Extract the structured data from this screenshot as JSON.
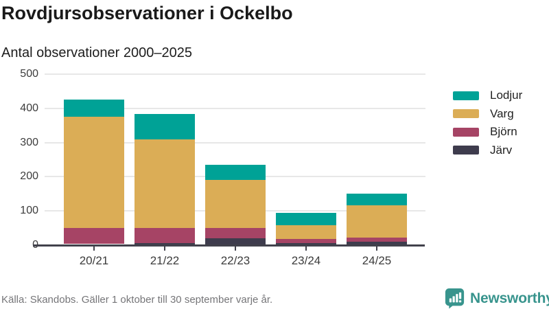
{
  "header": {
    "title": "Rovdjursobservationer i Ockelbo",
    "subtitle": "Antal observationer 2000–2025"
  },
  "chart_data": {
    "type": "bar",
    "stacked": true,
    "title": "Rovdjursobservationer i Ockelbo",
    "subtitle": "Antal observationer 2000–2025",
    "categories": [
      "20/21",
      "21/22",
      "22/23",
      "23/24",
      "24/25"
    ],
    "series": [
      {
        "name": "Järv",
        "color": "#3e3c4d",
        "values": [
          3,
          7,
          20,
          7,
          10
        ]
      },
      {
        "name": "Björn",
        "color": "#a64465",
        "values": [
          48,
          44,
          30,
          12,
          12
        ]
      },
      {
        "name": "Varg",
        "color": "#dbad56",
        "values": [
          324,
          259,
          140,
          39,
          94
        ]
      },
      {
        "name": "Lodjur",
        "color": "#00a296",
        "values": [
          50,
          73,
          45,
          37,
          34
        ]
      }
    ],
    "totals": [
      425,
      383,
      235,
      95,
      150
    ],
    "legend_order": [
      "Lodjur",
      "Varg",
      "Björn",
      "Järv"
    ],
    "legend_position": "right",
    "xlabel": "",
    "ylabel": "",
    "ylim": [
      0,
      500
    ],
    "yticks": [
      0,
      100,
      200,
      300,
      400,
      500
    ],
    "grid": true
  },
  "footer": {
    "source": "Källa: Skandobs. Gäller 1 oktober till 30 september varje år.",
    "brand": "Newsworthy"
  },
  "colors": {
    "grid": "#e7e7e7",
    "axis": "#41414b",
    "text": "#3c3c3c",
    "title": "#1a1a1a",
    "source_text": "#757578",
    "brand_teal": "#38948d",
    "background": "#ffffff"
  }
}
